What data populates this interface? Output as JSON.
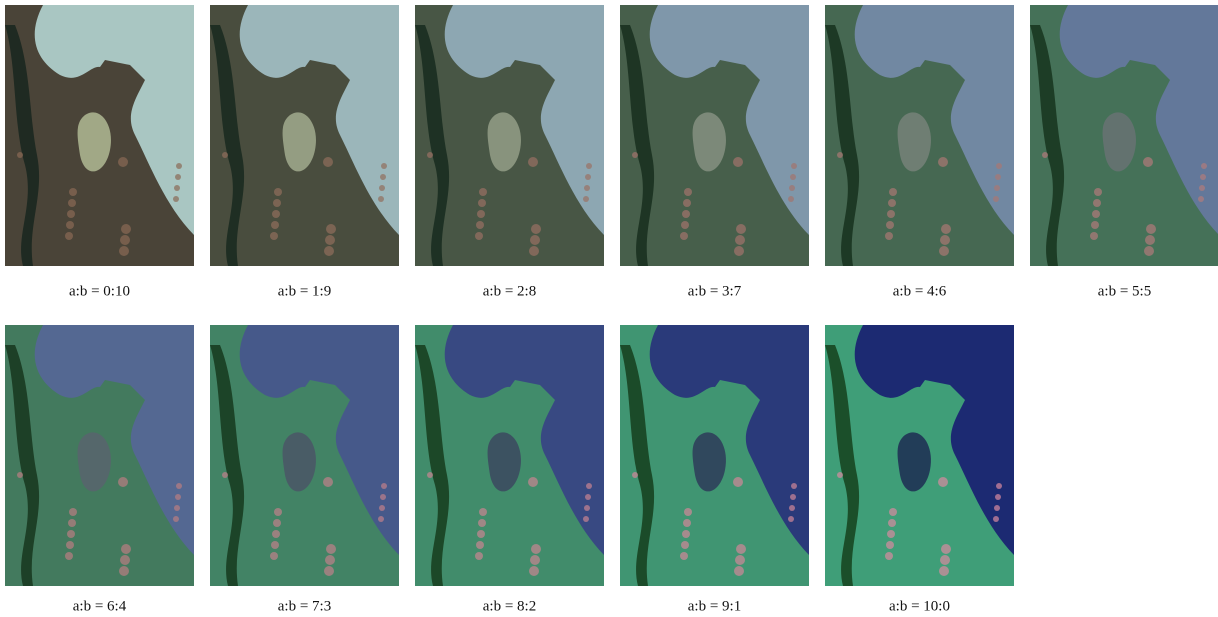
{
  "figure": {
    "panels": [
      {
        "caption": "a:b = 0:10"
      },
      {
        "caption": "a:b = 1:9"
      },
      {
        "caption": "a:b = 2:8"
      },
      {
        "caption": "a:b = 3:7"
      },
      {
        "caption": "a:b = 4:6"
      },
      {
        "caption": "a:b = 5:5"
      },
      {
        "caption": "a:b = 6:4"
      },
      {
        "caption": "a:b = 7:3"
      },
      {
        "caption": "a:b = 8:2"
      },
      {
        "caption": "a:b = 9:1"
      },
      {
        "caption": "a:b = 10:0"
      }
    ]
  }
}
